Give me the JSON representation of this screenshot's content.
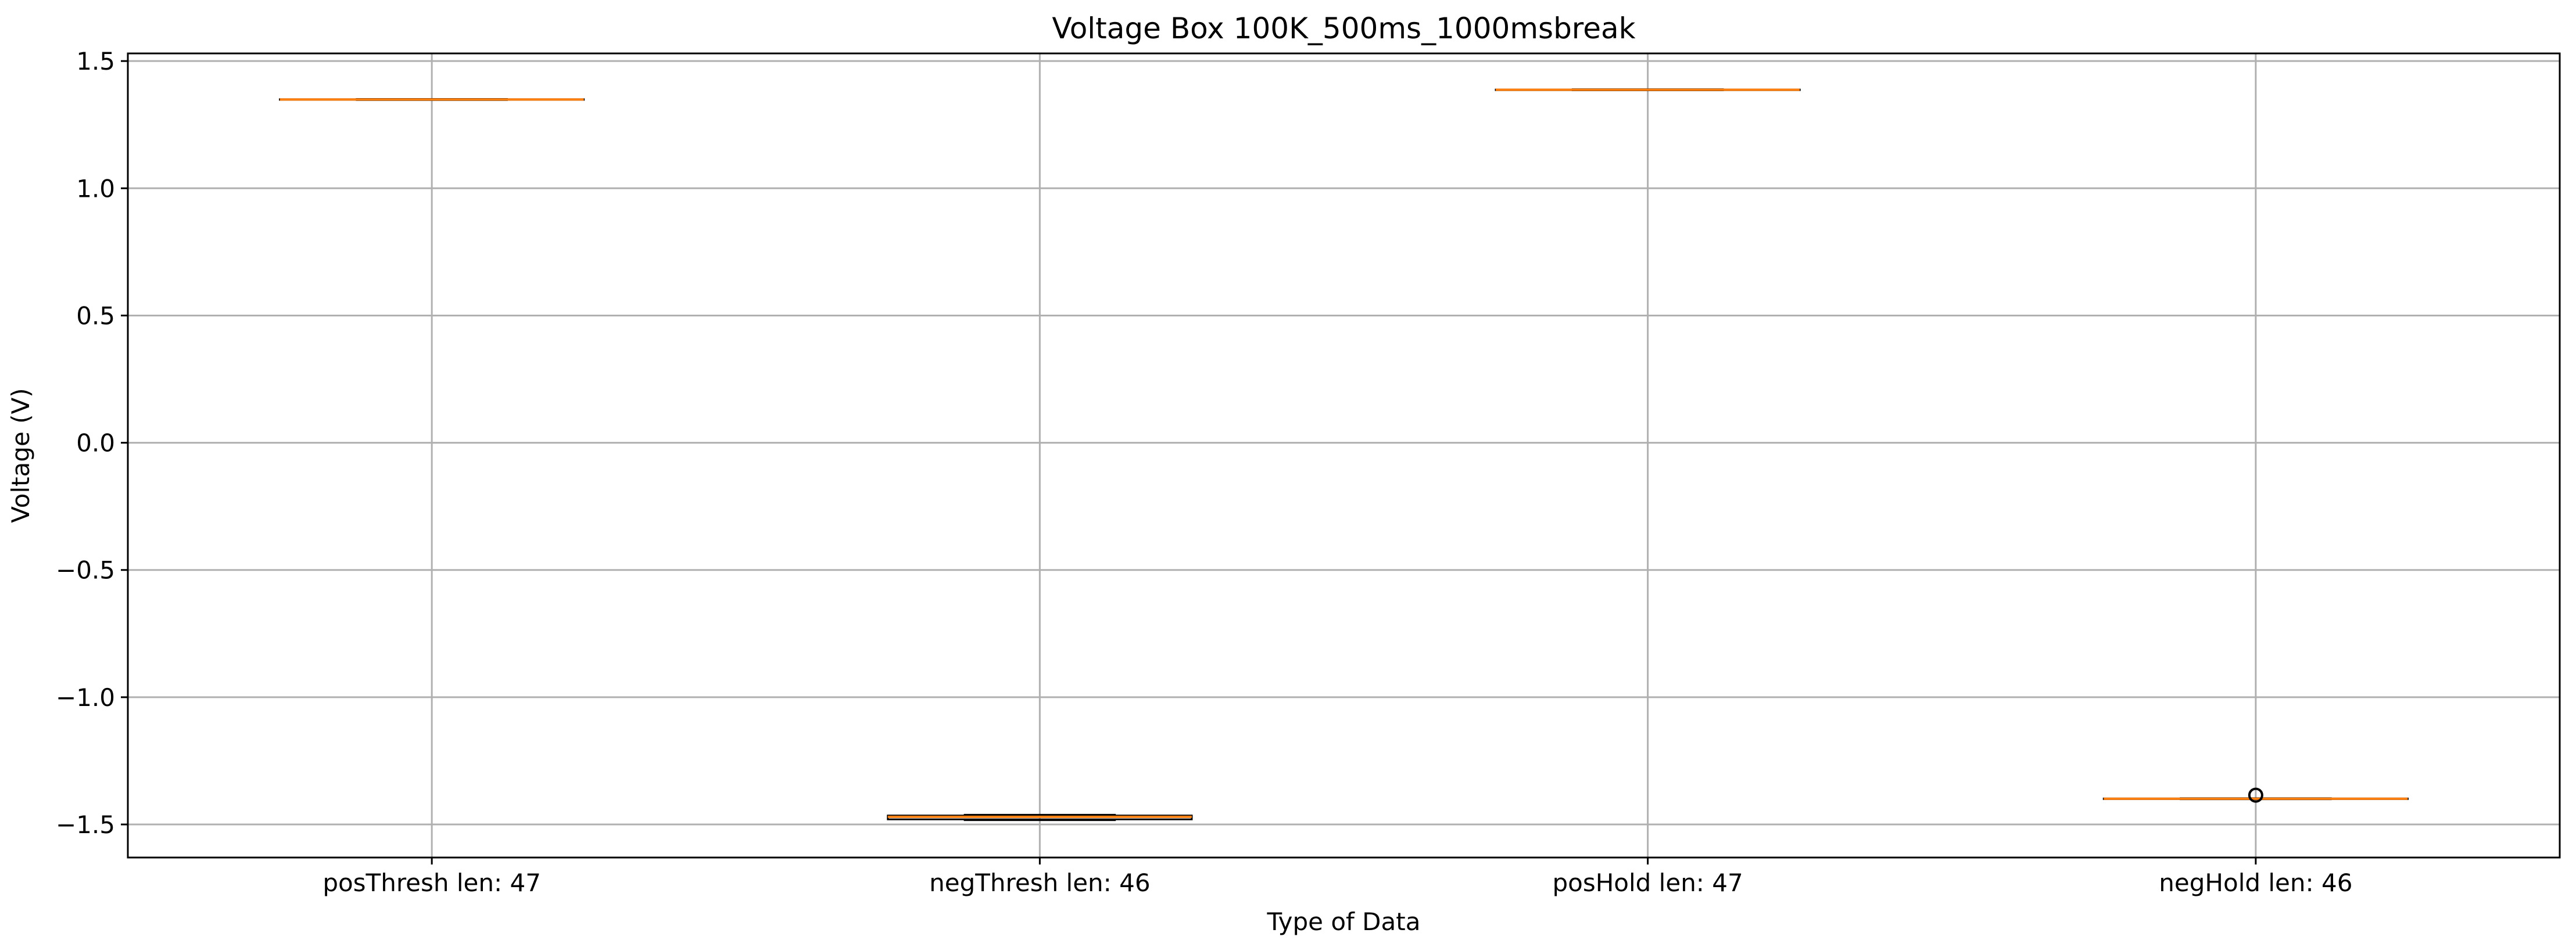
{
  "chart_data": {
    "type": "box",
    "title": "Voltage Box 100K_500ms_1000msbreak",
    "xlabel": "Type of Data",
    "ylabel": "Voltage (V)",
    "ylim": [
      -1.63,
      1.53
    ],
    "yticks": [
      1.5,
      1.0,
      0.5,
      0.0,
      -0.5,
      -1.0,
      -1.5
    ],
    "ytick_labels": [
      "1.5",
      "1.0",
      "0.5",
      "0.0",
      "−0.5",
      "−1.0",
      "−1.5"
    ],
    "categories": [
      "posThresh len: 47",
      "negThresh len: 46",
      "posHold len: 47",
      "negHold len: 46"
    ],
    "boxes": [
      {
        "q1": 1.348,
        "median": 1.349,
        "q3": 1.35,
        "whisker_low": 1.347,
        "whisker_high": 1.351,
        "outliers": []
      },
      {
        "q1": -1.48,
        "median": -1.47,
        "q3": -1.465,
        "whisker_low": -1.483,
        "whisker_high": -1.462,
        "outliers": []
      },
      {
        "q1": 1.386,
        "median": 1.387,
        "q3": 1.388,
        "whisker_low": 1.385,
        "whisker_high": 1.389,
        "outliers": []
      },
      {
        "q1": -1.4,
        "median": -1.399,
        "q3": -1.398,
        "whisker_low": -1.401,
        "whisker_high": -1.397,
        "outliers": [
          -1.385
        ]
      }
    ],
    "grid": true,
    "colors": {
      "median": "#ff7f0e",
      "box": "#000000",
      "grid": "#b0b0b0",
      "outlier": "#000000"
    }
  }
}
